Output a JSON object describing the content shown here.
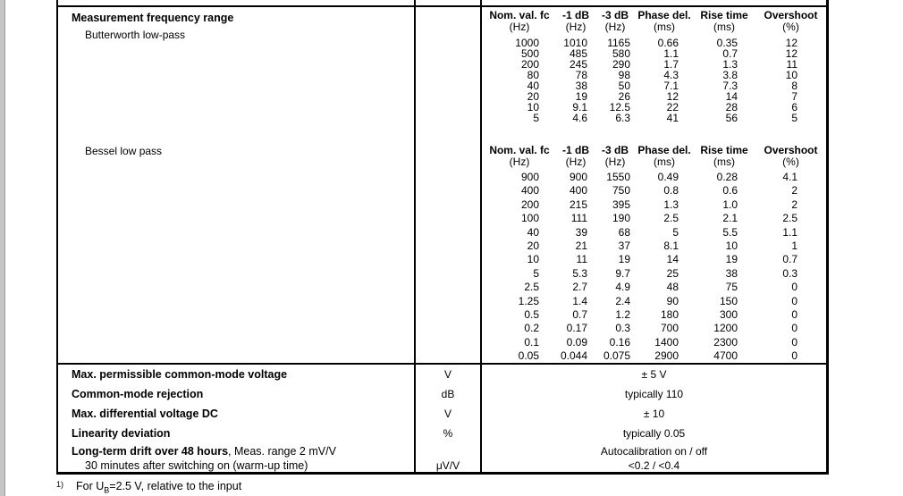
{
  "document": {
    "footnote_marker": "1)",
    "footnote_pre": "For U",
    "footnote_sub": "B",
    "footnote_post": "=2.5 V, relative to the input"
  },
  "spec_table": {
    "frequency_row": {
      "title": "Measurement frequency range",
      "butterworth_label": "Butterworth low-pass",
      "bessel_label": "Bessel low pass"
    },
    "bottom_rows": [
      {
        "param": "Max. permissible common-mode voltage",
        "unit": "V",
        "value": "± 5 V"
      },
      {
        "param": "Common-mode rejection",
        "unit": "dB",
        "value": "typically 110"
      },
      {
        "param": "Max. differential voltage DC",
        "unit": "V",
        "value": "± 10"
      },
      {
        "param": "Linearity deviation",
        "unit": "%",
        "value": "typically 0.05"
      },
      {
        "param_bold": "Long-term drift over 48 hours",
        "param_rest": ", Meas. range 2 mV/V",
        "unit": "",
        "value": "Autocalibration on / off"
      },
      {
        "param": "30 minutes after switching on (warm-up time)",
        "unit": "μV/V",
        "value": "<0.2 / <0.4"
      }
    ]
  },
  "freq_tables": {
    "butterworth": {
      "headers": [
        "Nom. val. fc",
        "-1 dB",
        "-3 dB",
        "Phase del.",
        "Rise time",
        "Overshoot"
      ],
      "units": [
        "(Hz)",
        "(Hz)",
        "(Hz)",
        "(ms)",
        "(ms)",
        "(%)"
      ],
      "rows": [
        [
          "1000",
          "1010",
          "1165",
          "0.66",
          "0.35",
          "12"
        ],
        [
          "500",
          "485",
          "580",
          "1.1",
          "0.7",
          "12"
        ],
        [
          "200",
          "245",
          "290",
          "1.7",
          "1.3",
          "11"
        ],
        [
          "80",
          "78",
          "98",
          "4.3",
          "3.8",
          "10"
        ],
        [
          "40",
          "38",
          "50",
          "7.1",
          "7.3",
          "8"
        ],
        [
          "20",
          "19",
          "26",
          "12",
          "14",
          "7"
        ],
        [
          "10",
          "9.1",
          "12.5",
          "22",
          "28",
          "6"
        ],
        [
          "5",
          "4.6",
          "6.3",
          "41",
          "56",
          "5"
        ]
      ]
    },
    "bessel": {
      "headers": [
        "Nom. val. fc",
        "-1 dB",
        "-3 dB",
        "Phase del.",
        "Rise time",
        "Overshoot"
      ],
      "units": [
        "(Hz)",
        "(Hz)",
        "(Hz)",
        "(ms)",
        "(ms)",
        "(%)"
      ],
      "rows": [
        [
          "900",
          "900",
          "1550",
          "0.49",
          "0.28",
          "4.1"
        ],
        [
          "400",
          "400",
          "750",
          "0.8",
          "0.6",
          "2"
        ],
        [
          "200",
          "215",
          "395",
          "1.3",
          "1.0",
          "2"
        ],
        [
          "100",
          "111",
          "190",
          "2.5",
          "2.1",
          "2.5"
        ],
        [
          "40",
          "39",
          "68",
          "5",
          "5.5",
          "1.1"
        ],
        [
          "20",
          "21",
          "37",
          "8.1",
          "10",
          "1"
        ],
        [
          "10",
          "11",
          "19",
          "14",
          "19",
          "0.7"
        ],
        [
          "5",
          "5.3",
          "9.7",
          "25",
          "38",
          "0.3"
        ],
        [
          "2.5",
          "2.7",
          "4.9",
          "48",
          "75",
          "0"
        ],
        [
          "1.25",
          "1.4",
          "2.4",
          "90",
          "150",
          "0"
        ],
        [
          "0.5",
          "0.7",
          "1.2",
          "180",
          "300",
          "0"
        ],
        [
          "0.2",
          "0.17",
          "0.3",
          "700",
          "1200",
          "0"
        ],
        [
          "0.1",
          "0.09",
          "0.16",
          "1400",
          "2300",
          "0"
        ],
        [
          "0.05",
          "0.044",
          "0.075",
          "2900",
          "4700",
          "0"
        ]
      ]
    }
  }
}
